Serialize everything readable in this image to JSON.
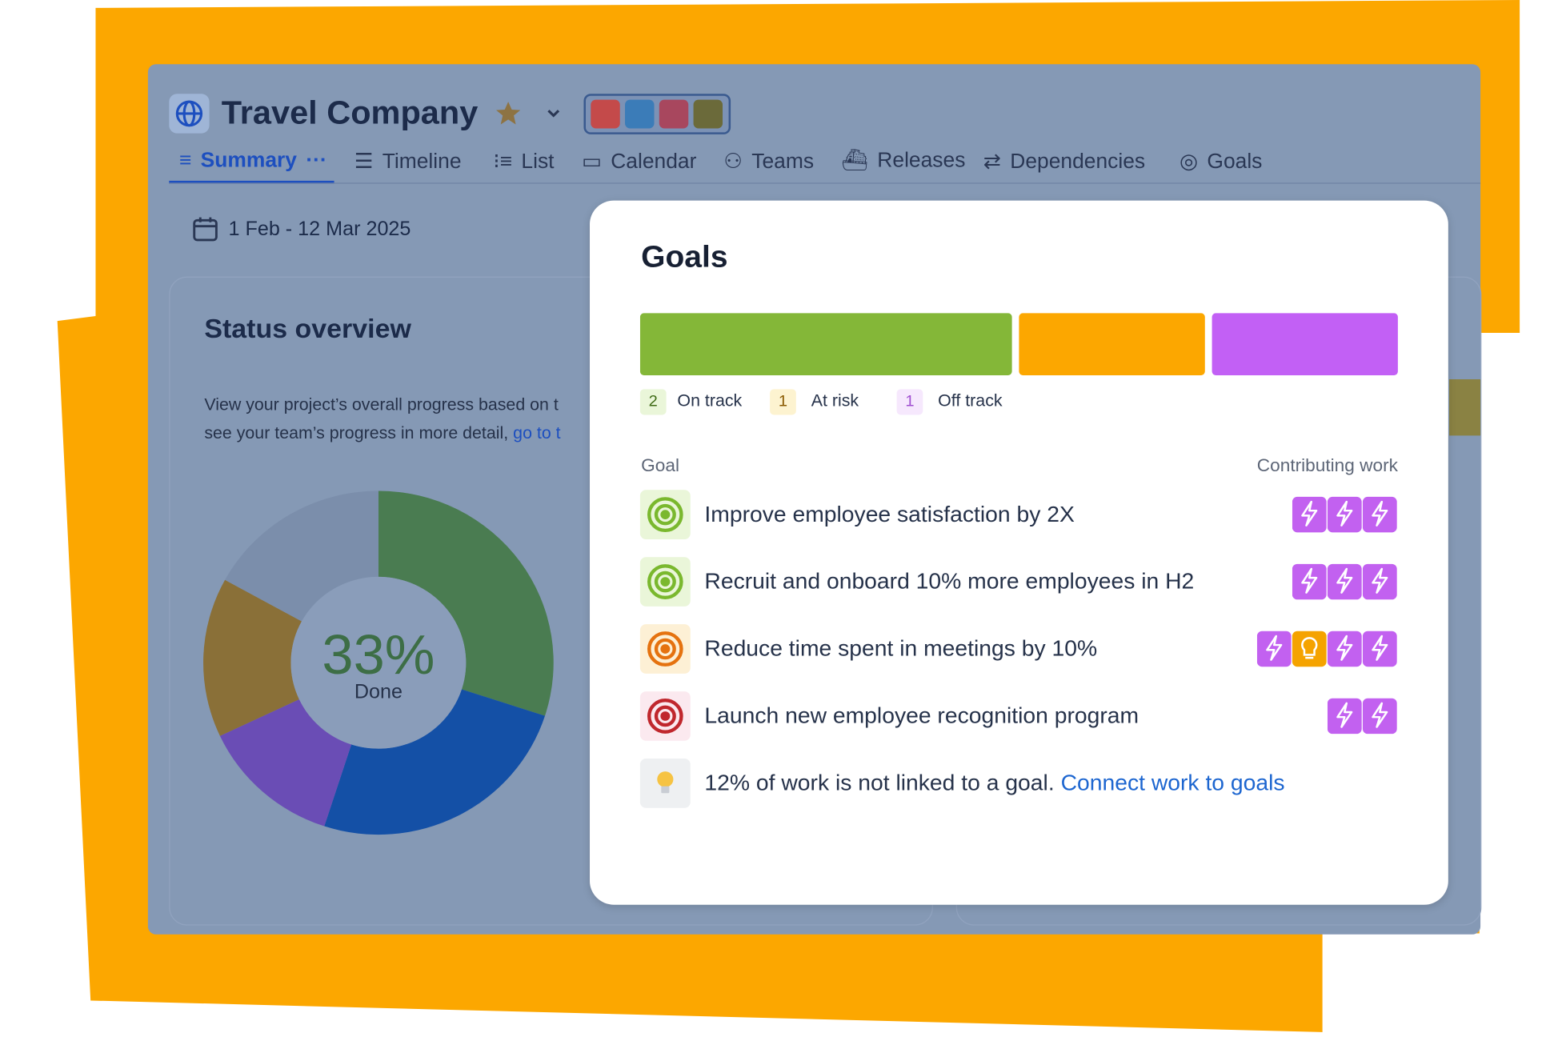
{
  "header": {
    "title": "Travel Company"
  },
  "tabs": [
    "Summary",
    "Timeline",
    "List",
    "Calendar",
    "Teams",
    "Releases",
    "Dependencies",
    "Goals"
  ],
  "date_range": "1 Feb - 12 Mar 2025",
  "status_overview": {
    "title": "Status overview",
    "description": [
      "View your project’s overall progress based on t",
      "see your team’s progress in more detail,"
    ],
    "link": "go to t"
  },
  "chart_data": [
    {
      "type": "donut",
      "center_label": "33%",
      "center_sublabel": "Done",
      "values": [
        30,
        25,
        13,
        15,
        17
      ],
      "colors": [
        "#4a7c51",
        "#1450a6",
        "#6a4db5",
        "#8a7038",
        "#7b8eab"
      ]
    },
    {
      "type": "stacked-bar",
      "title": "Goals",
      "series": [
        {
          "name": "On track",
          "color": "#84b738",
          "values": [
            2
          ]
        },
        {
          "name": "At risk",
          "color": "#fca700",
          "values": [
            1
          ]
        },
        {
          "name": "Off track",
          "color": "#c260f5",
          "values": [
            1
          ]
        }
      ]
    }
  ],
  "goals_table": {
    "columns": [
      "Goal",
      "Contributing work"
    ],
    "rows": [
      "Improve employee satisfaction by 2X",
      "Recruit and onboard 10% more employees in H2",
      "Reduce time spent in meetings by 10%",
      "Launch new employee recognition program"
    ],
    "note": {
      "text": "12% of work is not linked to a goal.",
      "link": "Connect work to goals"
    }
  }
}
